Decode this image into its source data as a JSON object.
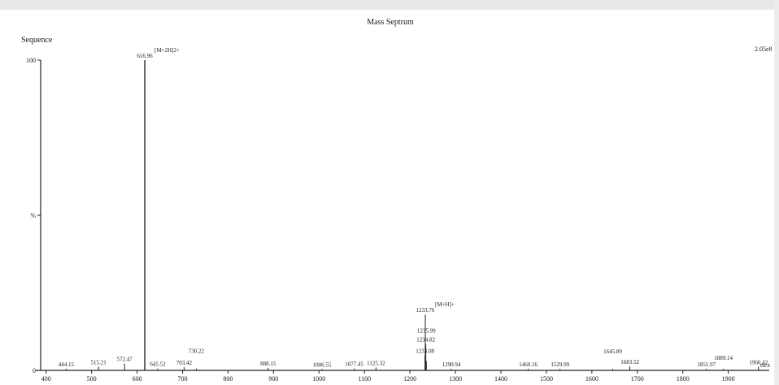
{
  "chart_data": {
    "type": "spectrum",
    "title": "Mass Septrum",
    "ylabel": "Sequence",
    "y_axis_ticks": [
      {
        "label": "100",
        "value": 100
      },
      {
        "label": "%",
        "value": 50
      },
      {
        "label": "0",
        "value": 0
      }
    ],
    "xlabel": "m/z",
    "scale_label": "2.05e8",
    "xlim": [
      388,
      1990
    ],
    "ylim": [
      0,
      100
    ],
    "x_ticks": [
      400,
      500,
      600,
      700,
      800,
      900,
      1000,
      1100,
      1200,
      1300,
      1400,
      1500,
      1600,
      1700,
      1800,
      1900
    ],
    "peaks": [
      {
        "x": 444.15,
        "label": "444.15",
        "intensity": 0.5
      },
      {
        "x": 515.21,
        "label": "515.21",
        "intensity": 1.2
      },
      {
        "x": 572.47,
        "label": "572.47",
        "intensity": 2.2
      },
      {
        "x": 616.96,
        "label": "616.96",
        "intensity": 100
      },
      {
        "x": 645.52,
        "label": "645.52",
        "intensity": 0.6
      },
      {
        "x": 703.42,
        "label": "703.42",
        "intensity": 1.0
      },
      {
        "x": 730.22,
        "label": "730.22",
        "intensity": 0.6
      },
      {
        "x": 888.15,
        "label": "888.15",
        "intensity": 0.8
      },
      {
        "x": 1006.55,
        "label": "1006.55",
        "intensity": 0.4
      },
      {
        "x": 1077.45,
        "label": "1077.45",
        "intensity": 0.6
      },
      {
        "x": 1125.32,
        "label": "1125.32",
        "intensity": 0.9
      },
      {
        "x": 1233.08,
        "label": "1233.08",
        "intensity": 4.8
      },
      {
        "x": 1233.76,
        "label": "1233.76",
        "intensity": 18
      },
      {
        "x": 1234.82,
        "label": "1234.82",
        "intensity": 8.5
      },
      {
        "x": 1235.99,
        "label": "1235.99",
        "intensity": 3
      },
      {
        "x": 1290.94,
        "label": "1290.94",
        "intensity": 0.5
      },
      {
        "x": 1460.16,
        "label": "1460.16",
        "intensity": 0.5
      },
      {
        "x": 1529.99,
        "label": "1529.99",
        "intensity": 0.5
      },
      {
        "x": 1645.89,
        "label": "1645.89",
        "intensity": 0.5
      },
      {
        "x": 1683.52,
        "label": "1683.52",
        "intensity": 1.3
      },
      {
        "x": 1851.97,
        "label": "1851.97",
        "intensity": 0.5
      },
      {
        "x": 1889.14,
        "label": "1889.14",
        "intensity": 0.5
      },
      {
        "x": 1966.42,
        "label": "1966.42",
        "intensity": 1.2
      }
    ],
    "annotations": [
      {
        "text": "[M+2H]2+",
        "peak": "616.96"
      },
      {
        "text": "[M+H]+",
        "peak": "1233.76"
      }
    ]
  }
}
